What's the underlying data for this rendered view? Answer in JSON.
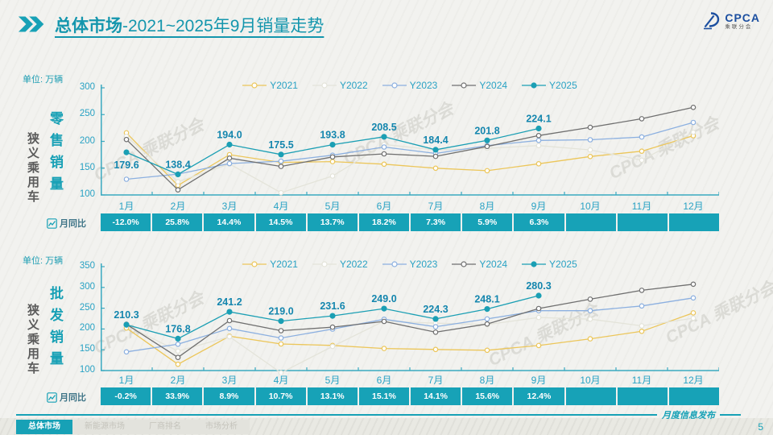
{
  "header": {
    "title_bold": "总体市场",
    "title_rest": "-2021~2025年9月销量走势",
    "logo": {
      "brand": "CPCA",
      "sub": "乘联分会"
    }
  },
  "watermark": {
    "text": "CPCA 乘联分会"
  },
  "chart_data": [
    {
      "type": "line",
      "title": "狭义乘用车零售销量走势",
      "unit": "单位: 万辆",
      "side_label": "狭义乘用车",
      "metric_label": "零售销量",
      "categories": [
        "1月",
        "2月",
        "3月",
        "4月",
        "5月",
        "6月",
        "7月",
        "8月",
        "9月",
        "10月",
        "11月",
        "12月"
      ],
      "ylim": [
        100,
        300
      ],
      "yticks": [
        300,
        250,
        200,
        150,
        100
      ],
      "legend_position": "top-center",
      "grid": false,
      "series": [
        {
          "name": "Y2021",
          "color": "#ecc65a",
          "marker": "open",
          "values": [
            216.0,
            117.7,
            175.2,
            160.8,
            162.3,
            157.5,
            150.0,
            145.3,
            158.2,
            171.7,
            181.6,
            210.5
          ]
        },
        {
          "name": "Y2022",
          "color": "#e4e4da",
          "marker": "open",
          "values": [
            209.2,
            124.6,
            157.9,
            104.2,
            135.4,
            194.3,
            184.0,
            187.1,
            192.2,
            184.0,
            164.9,
            217.0
          ]
        },
        {
          "name": "Y2023",
          "color": "#8cb0e0",
          "marker": "open",
          "values": [
            129.3,
            139.0,
            158.7,
            163.0,
            174.2,
            189.4,
            177.5,
            192.0,
            201.8,
            203.0,
            208.1,
            235.3
          ]
        },
        {
          "name": "Y2024",
          "color": "#707070",
          "marker": "open",
          "values": [
            203.5,
            109.5,
            168.7,
            153.2,
            171.0,
            176.7,
            172.0,
            190.5,
            210.9,
            226.1,
            242.3,
            263.5
          ]
        },
        {
          "name": "Y2025",
          "color": "#1b9fb4",
          "marker": "filled",
          "labeled": true,
          "label_below_indices": [
            0
          ],
          "values": [
            179.6,
            138.4,
            194.0,
            175.5,
            193.8,
            208.5,
            184.4,
            201.8,
            224.1,
            null,
            null,
            null
          ]
        }
      ],
      "yoy": {
        "label": "月同比",
        "values": [
          "-12.0%",
          "25.8%",
          "14.4%",
          "14.5%",
          "13.7%",
          "18.2%",
          "7.3%",
          "5.9%",
          "6.3%",
          "",
          "",
          ""
        ]
      }
    },
    {
      "type": "line",
      "title": "狭义乘用车批发销量走势",
      "unit": "单位: 万辆",
      "side_label": "狭义乘用车",
      "metric_label": "批发销量",
      "categories": [
        "1月",
        "2月",
        "3月",
        "4月",
        "5月",
        "6月",
        "7月",
        "8月",
        "9月",
        "10月",
        "11月",
        "12月"
      ],
      "ylim": [
        100,
        350
      ],
      "yticks": [
        350,
        300,
        250,
        200,
        150,
        100
      ],
      "legend_position": "top-center",
      "grid": false,
      "series": [
        {
          "name": "Y2021",
          "color": "#ecc65a",
          "marker": "open",
          "values": [
            202.3,
            115.1,
            182.8,
            164.0,
            160.5,
            153.1,
            150.8,
            148.8,
            160.2,
            176.4,
            194.4,
            238.7
          ]
        },
        {
          "name": "Y2022",
          "color": "#e4e4da",
          "marker": "open",
          "values": [
            208.3,
            146.9,
            181.4,
            94.6,
            158.2,
            218.9,
            213.9,
            210.7,
            227.8,
            223.6,
            207.6,
            225.9
          ]
        },
        {
          "name": "Y2023",
          "color": "#8cb0e0",
          "marker": "open",
          "values": [
            144.9,
            163.3,
            201.1,
            178.3,
            199.9,
            223.5,
            205.5,
            224.2,
            244.1,
            243.9,
            255.5,
            274.9
          ]
        },
        {
          "name": "Y2024",
          "color": "#707070",
          "marker": "open",
          "values": [
            211.3,
            131.5,
            220.1,
            195.9,
            204.4,
            218.3,
            192.2,
            212.1,
            249.3,
            271.8,
            293.1,
            307.7
          ]
        },
        {
          "name": "Y2025",
          "color": "#1b9fb4",
          "marker": "filled",
          "labeled": true,
          "label_below_indices": [],
          "values": [
            210.3,
            176.8,
            241.2,
            219.0,
            231.6,
            249.0,
            224.3,
            248.1,
            280.3,
            null,
            null,
            null
          ]
        }
      ],
      "yoy": {
        "label": "月同比",
        "values": [
          "-0.2%",
          "33.9%",
          "8.9%",
          "10.7%",
          "13.1%",
          "15.1%",
          "14.1%",
          "15.6%",
          "12.4%",
          "",
          "",
          ""
        ]
      }
    }
  ],
  "footer": {
    "tabs": [
      {
        "label": "总体市场",
        "active": true
      },
      {
        "label": "新能源市场",
        "active": false
      },
      {
        "label": "厂商排名",
        "active": false
      },
      {
        "label": "市场分析",
        "active": false
      }
    ],
    "release_note": "月度信息发布",
    "page_number": "5"
  }
}
